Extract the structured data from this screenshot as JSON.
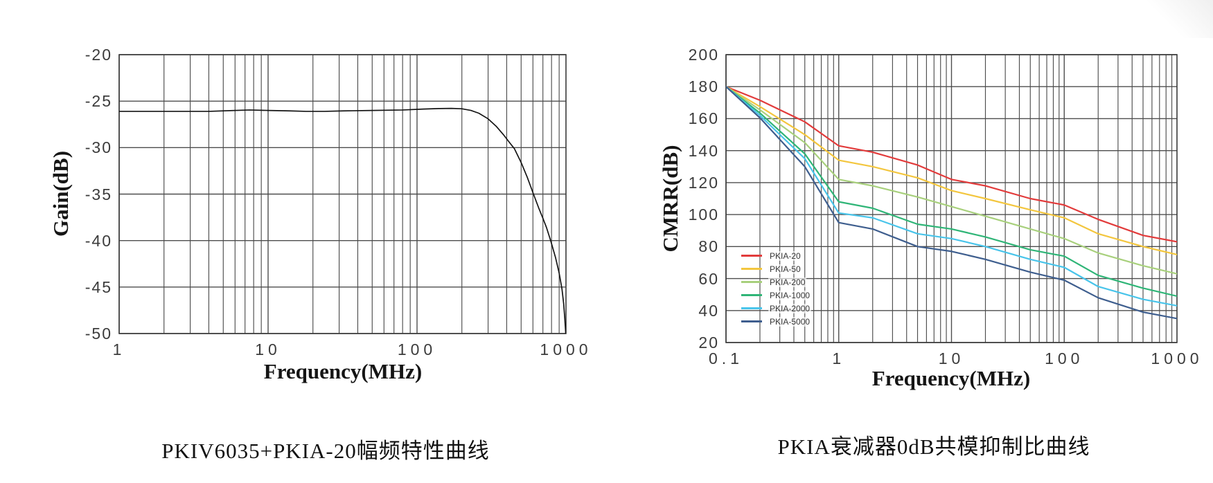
{
  "page": {
    "background": "#ffffff"
  },
  "chart_data": [
    {
      "type": "line",
      "title": "PKIV6035+PKIA-20幅频特性曲线",
      "xlabel": "Frequency(MHz)",
      "ylabel": "Gain(dB)",
      "x_scale": "log",
      "xlim": [
        1,
        1000
      ],
      "ylim": [
        -50,
        -20
      ],
      "grid": true,
      "legend": false,
      "grid_color": "#4d4d4d",
      "x_ticks": {
        "values": [
          1,
          10,
          100,
          1000
        ],
        "labels": [
          "1",
          "10",
          "100",
          "1000"
        ]
      },
      "y_ticks": {
        "values": [
          -20,
          -25,
          -30,
          -35,
          -40,
          -45,
          -50
        ],
        "labels": [
          "-20",
          "-25",
          "-30",
          "-35",
          "-40",
          "-45",
          "-50"
        ]
      },
      "series": [
        {
          "name": "PKIV6035+PKIA-20 gain",
          "color": "#141414",
          "x": [
            1,
            2,
            4,
            6,
            7.5,
            10,
            14,
            18,
            24,
            32,
            50,
            80,
            110,
            140,
            170,
            200,
            230,
            260,
            300,
            340,
            380,
            420,
            450,
            500,
            550,
            605,
            660,
            700,
            740,
            789,
            850,
            900,
            940,
            965,
            980,
            992,
            1000
          ],
          "values": [
            -26.1,
            -26.1,
            -26.1,
            -26.0,
            -25.95,
            -26.0,
            -26.05,
            -26.1,
            -26.1,
            -26.05,
            -26.0,
            -25.95,
            -25.85,
            -25.8,
            -25.78,
            -25.82,
            -26.0,
            -26.3,
            -26.9,
            -27.7,
            -28.6,
            -29.5,
            -30.1,
            -31.6,
            -33.2,
            -35.0,
            -36.6,
            -37.6,
            -38.6,
            -40.0,
            -41.8,
            -43.5,
            -45.2,
            -46.8,
            -48.2,
            -49.5,
            -50.5
          ]
        }
      ]
    },
    {
      "type": "line",
      "title": "PKIA衰减器0dB共模抑制比曲线",
      "xlabel": "Frequency(MHz)",
      "ylabel": "CMRR(dB)",
      "x_scale": "log",
      "xlim": [
        0.1,
        1000
      ],
      "ylim": [
        20,
        200
      ],
      "grid": true,
      "legend": true,
      "legend_position": "inside-left",
      "grid_color": "#4d4d4d",
      "x_ticks": {
        "values": [
          0.1,
          1,
          10,
          100,
          1000
        ],
        "labels": [
          "0.1",
          "1",
          "10",
          "100",
          "1000"
        ]
      },
      "y_ticks": {
        "values": [
          200,
          180,
          160,
          140,
          120,
          100,
          80,
          60,
          40,
          20
        ],
        "labels": [
          "200",
          "180",
          "160",
          "140",
          "120",
          "100",
          "80",
          "60",
          "40",
          "20"
        ]
      },
      "x_shared": [
        0.1,
        0.2,
        0.5,
        1,
        2,
        5,
        10,
        20,
        50,
        100,
        200,
        500,
        1000
      ],
      "series": [
        {
          "name": "PKIA-20",
          "color": "#e23b3b",
          "values": [
            180,
            171.5,
            158,
            143,
            139,
            131,
            122,
            118,
            110,
            106,
            97,
            87,
            83
          ]
        },
        {
          "name": "PKIA-50",
          "color": "#f3c63e",
          "values": [
            180,
            167.5,
            150,
            134,
            130,
            123,
            115,
            110,
            103,
            98,
            88,
            80,
            75
          ]
        },
        {
          "name": "PKIA-200",
          "color": "#a8d07c",
          "values": [
            180,
            165.5,
            145,
            122,
            118,
            111,
            105,
            99,
            91,
            85,
            76,
            68,
            63
          ]
        },
        {
          "name": "PKIA-1000",
          "color": "#2fb577",
          "values": [
            180,
            163.5,
            138,
            108,
            104,
            94,
            91,
            86,
            78,
            74,
            62,
            54,
            49
          ]
        },
        {
          "name": "PKIA-2000",
          "color": "#48c4ea",
          "values": [
            180,
            162,
            135,
            101,
            98,
            88,
            85,
            80,
            72,
            67,
            55,
            47,
            43
          ]
        },
        {
          "name": "PKIA-5000",
          "color": "#3e5e8e",
          "values": [
            180,
            160.5,
            130,
            95,
            91,
            80,
            77,
            72,
            64,
            59,
            48,
            39,
            35
          ]
        }
      ]
    }
  ]
}
